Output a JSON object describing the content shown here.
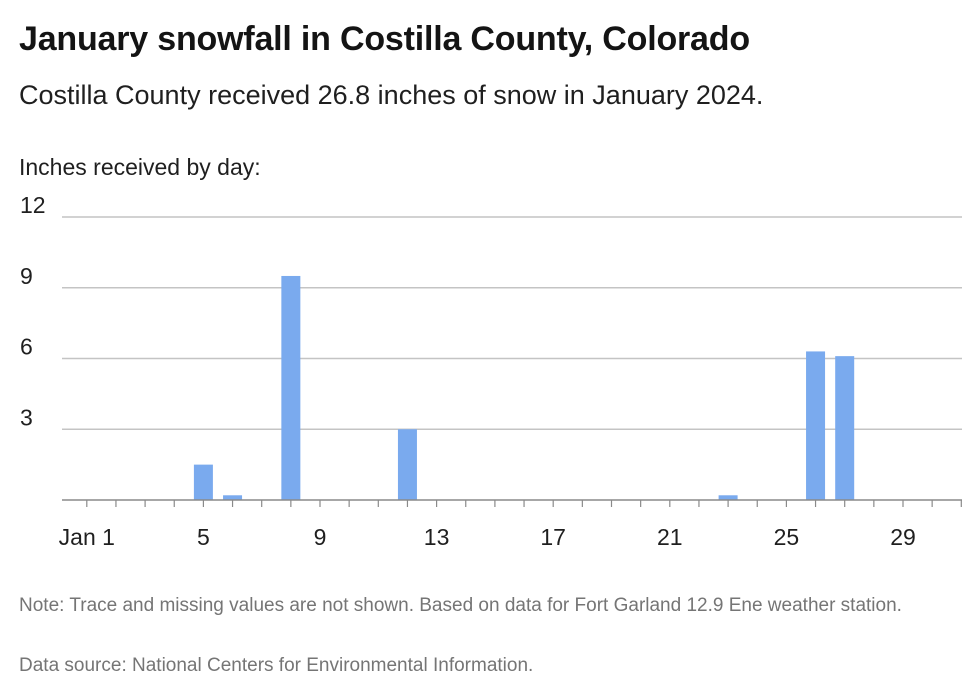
{
  "header": {
    "title": "January snowfall in Costilla County, Colorado",
    "subtitle": "Costilla County received 26.8 inches of snow in January 2024."
  },
  "footer": {
    "note": "Note: Trace and missing values are not shown. Based on data for Fort Garland 12.9 Ene weather station.",
    "source": "Data source: National Centers for Environmental Information."
  },
  "chart_data": {
    "type": "bar",
    "title": "January snowfall in Costilla County, Colorado",
    "subtitle": "Costilla County received 26.8 inches of snow in January 2024.",
    "ylabel": "Inches received by day:",
    "xlabel": "",
    "ylim": [
      0,
      12
    ],
    "yticks": [
      3,
      6,
      9,
      12
    ],
    "xticks": [
      {
        "day": 1,
        "label": "Jan 1"
      },
      {
        "day": 5,
        "label": "5"
      },
      {
        "day": 9,
        "label": "9"
      },
      {
        "day": 13,
        "label": "13"
      },
      {
        "day": 17,
        "label": "17"
      },
      {
        "day": 21,
        "label": "21"
      },
      {
        "day": 25,
        "label": "25"
      },
      {
        "day": 29,
        "label": "29"
      }
    ],
    "grid": true,
    "bar_color": "#7aaaee",
    "x": [
      5,
      6,
      8,
      12,
      23,
      26,
      27
    ],
    "values": [
      1.5,
      0.2,
      9.5,
      3.0,
      0.2,
      6.3,
      6.1
    ]
  }
}
